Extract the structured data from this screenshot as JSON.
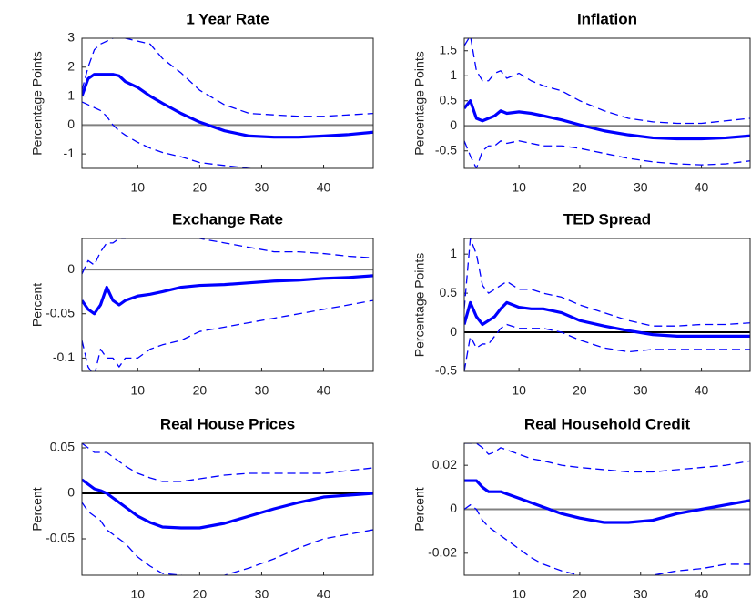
{
  "chart_data": [
    {
      "type": "line",
      "title": "1 Year Rate",
      "y_label": "Percentage Points",
      "x": [
        1,
        2,
        3,
        4,
        5,
        6,
        7,
        8,
        10,
        12,
        14,
        17,
        20,
        24,
        28,
        32,
        36,
        40,
        44,
        48
      ],
      "series": [
        {
          "color": "#0000ff",
          "style": "solid",
          "values": [
            1.0,
            1.6,
            1.75,
            1.75,
            1.75,
            1.75,
            1.7,
            1.5,
            1.3,
            1.0,
            0.75,
            0.4,
            0.1,
            -0.2,
            -0.38,
            -0.42,
            -0.42,
            -0.38,
            -0.33,
            -0.25
          ]
        },
        {
          "color": "#0000ff",
          "style": "dashed",
          "values": [
            1.2,
            2.0,
            2.6,
            2.8,
            2.9,
            3.0,
            3.05,
            3.0,
            2.9,
            2.8,
            2.3,
            1.8,
            1.2,
            0.7,
            0.4,
            0.35,
            0.3,
            0.3,
            0.35,
            0.4
          ]
        },
        {
          "color": "#0000ff",
          "style": "dashed",
          "values": [
            0.8,
            0.7,
            0.6,
            0.5,
            0.3,
            0.0,
            -0.2,
            -0.35,
            -0.6,
            -0.8,
            -0.95,
            -1.1,
            -1.3,
            -1.4,
            -1.5,
            -1.52,
            -1.55,
            -1.55,
            -1.55,
            -1.55
          ]
        }
      ],
      "xlim": [
        1,
        48
      ],
      "xticks": [
        10,
        20,
        30,
        40
      ],
      "ylim": [
        -1.5,
        3
      ],
      "yticks": [
        -1,
        0,
        1,
        2,
        3
      ],
      "hline": 0,
      "hline_color": "#808080"
    },
    {
      "type": "line",
      "title": "Inflation",
      "y_label": "Percentage Points",
      "x": [
        1,
        2,
        3,
        4,
        5,
        6,
        7,
        8,
        10,
        12,
        14,
        17,
        20,
        24,
        28,
        32,
        36,
        40,
        44,
        48
      ],
      "series": [
        {
          "color": "#0000ff",
          "style": "solid",
          "values": [
            0.35,
            0.5,
            0.15,
            0.1,
            0.15,
            0.2,
            0.3,
            0.25,
            0.28,
            0.25,
            0.2,
            0.12,
            0.02,
            -0.1,
            -0.18,
            -0.24,
            -0.26,
            -0.26,
            -0.24,
            -0.2
          ]
        },
        {
          "color": "#0000ff",
          "style": "dashed",
          "values": [
            1.6,
            1.8,
            1.1,
            0.9,
            0.9,
            1.05,
            1.1,
            0.95,
            1.05,
            0.9,
            0.8,
            0.7,
            0.5,
            0.3,
            0.15,
            0.08,
            0.05,
            0.05,
            0.1,
            0.15
          ]
        },
        {
          "color": "#0000ff",
          "style": "dashed",
          "values": [
            -0.3,
            -0.6,
            -0.85,
            -0.5,
            -0.4,
            -0.4,
            -0.3,
            -0.35,
            -0.3,
            -0.35,
            -0.4,
            -0.4,
            -0.45,
            -0.55,
            -0.65,
            -0.72,
            -0.76,
            -0.78,
            -0.76,
            -0.7
          ]
        }
      ],
      "xlim": [
        1,
        48
      ],
      "xticks": [
        10,
        20,
        30,
        40
      ],
      "ylim": [
        -0.85,
        1.75
      ],
      "yticks": [
        -0.5,
        0,
        0.5,
        1,
        1.5
      ],
      "hline": 0,
      "hline_color": "#808080"
    },
    {
      "type": "line",
      "title": "Exchange Rate",
      "y_label": "Percent",
      "x": [
        1,
        2,
        3,
        4,
        5,
        6,
        7,
        8,
        10,
        12,
        14,
        17,
        20,
        24,
        28,
        32,
        36,
        40,
        44,
        48
      ],
      "series": [
        {
          "color": "#0000ff",
          "style": "solid",
          "values": [
            -0.035,
            -0.045,
            -0.05,
            -0.04,
            -0.02,
            -0.035,
            -0.04,
            -0.035,
            -0.03,
            -0.028,
            -0.025,
            -0.02,
            -0.018,
            -0.017,
            -0.015,
            -0.013,
            -0.012,
            -0.01,
            -0.009,
            -0.007
          ]
        },
        {
          "color": "#0000ff",
          "style": "dashed",
          "values": [
            -0.005,
            0.01,
            0.005,
            0.02,
            0.03,
            0.03,
            0.035,
            0.035,
            0.04,
            0.04,
            0.04,
            0.04,
            0.035,
            0.03,
            0.025,
            0.02,
            0.02,
            0.018,
            0.015,
            0.013
          ]
        },
        {
          "color": "#0000ff",
          "style": "dashed",
          "values": [
            -0.08,
            -0.11,
            -0.12,
            -0.09,
            -0.1,
            -0.1,
            -0.11,
            -0.1,
            -0.1,
            -0.09,
            -0.085,
            -0.08,
            -0.07,
            -0.065,
            -0.06,
            -0.055,
            -0.05,
            -0.045,
            -0.04,
            -0.035
          ]
        }
      ],
      "xlim": [
        1,
        48
      ],
      "xticks": [
        10,
        20,
        30,
        40
      ],
      "ylim": [
        -0.115,
        0.035
      ],
      "yticks": [
        -0.1,
        -0.05,
        0
      ],
      "hline": 0,
      "hline_color": "#808080"
    },
    {
      "type": "line",
      "title": "TED Spread",
      "y_label": "Percentage Points",
      "x": [
        1,
        2,
        3,
        4,
        5,
        6,
        7,
        8,
        10,
        12,
        14,
        17,
        20,
        24,
        28,
        32,
        36,
        40,
        44,
        48
      ],
      "series": [
        {
          "color": "#0000ff",
          "style": "solid",
          "values": [
            0.1,
            0.38,
            0.2,
            0.1,
            0.15,
            0.2,
            0.3,
            0.38,
            0.32,
            0.3,
            0.3,
            0.25,
            0.15,
            0.08,
            0.02,
            -0.03,
            -0.05,
            -0.05,
            -0.05,
            -0.05
          ]
        },
        {
          "color": "#0000ff",
          "style": "dashed",
          "values": [
            0.3,
            1.2,
            1.0,
            0.6,
            0.5,
            0.55,
            0.6,
            0.65,
            0.55,
            0.55,
            0.5,
            0.45,
            0.35,
            0.25,
            0.15,
            0.08,
            0.08,
            0.1,
            0.1,
            0.12
          ]
        },
        {
          "color": "#0000ff",
          "style": "dashed",
          "values": [
            -0.5,
            -0.05,
            -0.2,
            -0.15,
            -0.15,
            -0.05,
            0.05,
            0.1,
            0.05,
            0.05,
            0.05,
            0.0,
            -0.1,
            -0.2,
            -0.25,
            -0.22,
            -0.22,
            -0.22,
            -0.22,
            -0.22
          ]
        }
      ],
      "xlim": [
        1,
        48
      ],
      "xticks": [
        10,
        20,
        30,
        40
      ],
      "ylim": [
        -0.5,
        1.2
      ],
      "yticks": [
        -0.5,
        0,
        0.5,
        1
      ],
      "hline": 0,
      "hline_color": "#000000"
    },
    {
      "type": "line",
      "title": "Real House Prices",
      "y_label": "Percent",
      "x": [
        1,
        2,
        3,
        4,
        5,
        6,
        7,
        8,
        10,
        12,
        14,
        17,
        20,
        24,
        28,
        32,
        36,
        40,
        44,
        48
      ],
      "series": [
        {
          "color": "#0000ff",
          "style": "solid",
          "values": [
            0.015,
            0.01,
            0.005,
            0.003,
            0.0,
            -0.005,
            -0.01,
            -0.015,
            -0.025,
            -0.032,
            -0.037,
            -0.038,
            -0.038,
            -0.033,
            -0.025,
            -0.017,
            -0.01,
            -0.004,
            -0.002,
            0.0
          ]
        },
        {
          "color": "#0000ff",
          "style": "dashed",
          "values": [
            0.055,
            0.05,
            0.045,
            0.045,
            0.045,
            0.04,
            0.035,
            0.03,
            0.022,
            0.017,
            0.013,
            0.013,
            0.016,
            0.02,
            0.022,
            0.022,
            0.022,
            0.022,
            0.025,
            0.028
          ]
        },
        {
          "color": "#0000ff",
          "style": "dashed",
          "values": [
            -0.01,
            -0.02,
            -0.025,
            -0.03,
            -0.04,
            -0.045,
            -0.05,
            -0.055,
            -0.07,
            -0.08,
            -0.088,
            -0.09,
            -0.092,
            -0.09,
            -0.082,
            -0.072,
            -0.06,
            -0.05,
            -0.045,
            -0.04
          ]
        }
      ],
      "xlim": [
        1,
        48
      ],
      "xticks": [
        10,
        20,
        30,
        40
      ],
      "ylim": [
        -0.09,
        0.055
      ],
      "yticks": [
        -0.05,
        0,
        0.05
      ],
      "hline": 0,
      "hline_color": "#000000"
    },
    {
      "type": "line",
      "title": "Real Household Credit",
      "y_label": "Percent",
      "x": [
        1,
        2,
        3,
        4,
        5,
        6,
        7,
        8,
        10,
        12,
        14,
        17,
        20,
        24,
        28,
        32,
        36,
        40,
        44,
        48
      ],
      "series": [
        {
          "color": "#0000ff",
          "style": "solid",
          "values": [
            0.013,
            0.013,
            0.013,
            0.01,
            0.008,
            0.008,
            0.008,
            0.007,
            0.005,
            0.003,
            0.001,
            -0.002,
            -0.004,
            -0.006,
            -0.006,
            -0.005,
            -0.002,
            0.0,
            0.002,
            0.004
          ]
        },
        {
          "color": "#0000ff",
          "style": "dashed",
          "values": [
            0.03,
            0.03,
            0.03,
            0.028,
            0.025,
            0.026,
            0.028,
            0.027,
            0.025,
            0.023,
            0.022,
            0.02,
            0.019,
            0.018,
            0.017,
            0.017,
            0.018,
            0.019,
            0.02,
            0.022
          ]
        },
        {
          "color": "#0000ff",
          "style": "dashed",
          "values": [
            0.0,
            0.002,
            0.0,
            -0.005,
            -0.008,
            -0.01,
            -0.012,
            -0.014,
            -0.018,
            -0.022,
            -0.025,
            -0.028,
            -0.03,
            -0.031,
            -0.031,
            -0.03,
            -0.028,
            -0.027,
            -0.025,
            -0.025
          ]
        }
      ],
      "xlim": [
        1,
        48
      ],
      "xticks": [
        10,
        20,
        30,
        40
      ],
      "ylim": [
        -0.03,
        0.03
      ],
      "yticks": [
        -0.02,
        0,
        0.02
      ],
      "hline": 0,
      "hline_color": "#808080"
    }
  ]
}
